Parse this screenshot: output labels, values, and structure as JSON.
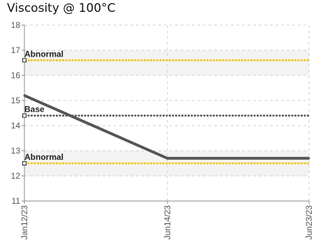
{
  "chart_data": {
    "type": "line",
    "title": "Viscosity @ 100°C",
    "x": [
      "Jan12/23",
      "Jun14/23",
      "Jun23/23"
    ],
    "ylim": [
      11,
      18
    ],
    "yticks": [
      11,
      12,
      13,
      14,
      15,
      16,
      17,
      18
    ],
    "grid": true,
    "series": [
      {
        "values": [
          15.2,
          12.7,
          12.7
        ],
        "color": "#555555"
      }
    ],
    "reference_lines": [
      {
        "label": "Abnormal",
        "value": 16.6,
        "color": "#F2C200",
        "style": "dashed"
      },
      {
        "label": "Base",
        "value": 14.4,
        "color": "#555555",
        "style": "dashed"
      },
      {
        "label": "Abnormal",
        "value": 12.5,
        "color": "#F2C200",
        "style": "dashed"
      }
    ],
    "bands": [
      {
        "from": 16,
        "to": 17,
        "color": "#F3F3F3"
      },
      {
        "from": 12,
        "to": 13,
        "color": "#F3F3F3"
      }
    ]
  }
}
